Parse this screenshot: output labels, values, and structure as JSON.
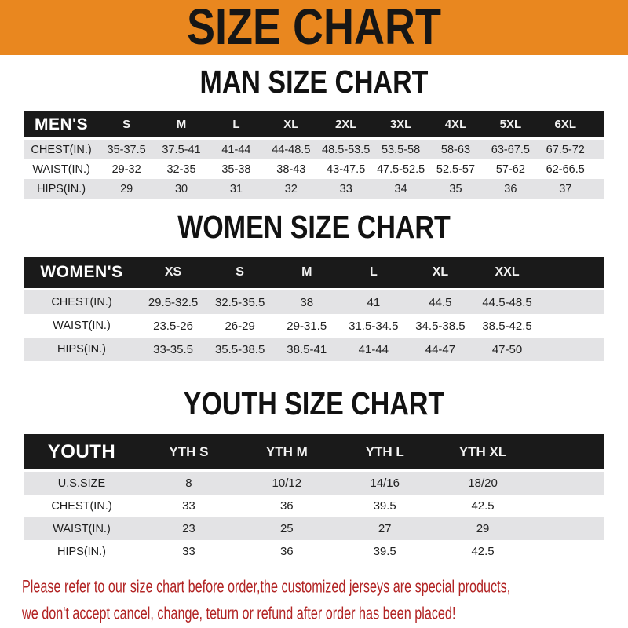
{
  "page": {
    "header_title": "SIZE CHART",
    "footer_line1": "Please refer to our size chart before order,the customized jerseys are special products,",
    "footer_line2": "we don't accept cancel, change, teturn or refund after order has been placed!"
  },
  "colors": {
    "banner_orange": "#E9871F",
    "band_black": "#1A1A1A",
    "stripe_gray": "#E3E3E5",
    "footer_red": "#B22424"
  },
  "tables": [
    {
      "title": "MAN SIZE CHART",
      "corner_label": "MEN'S",
      "columns": [
        "S",
        "M",
        "L",
        "XL",
        "2XL",
        "3XL",
        "4XL",
        "5XL",
        "6XL"
      ],
      "rows": [
        {
          "label": "CHEST(IN.)",
          "values": [
            "35-37.5",
            "37.5-41",
            "41-44",
            "44-48.5",
            "48.5-53.5",
            "53.5-58",
            "58-63",
            "63-67.5",
            "67.5-72"
          ]
        },
        {
          "label": "WAIST(IN.)",
          "values": [
            "29-32",
            "32-35",
            "35-38",
            "38-43",
            "43-47.5",
            "47.5-52.5",
            "52.5-57",
            "57-62",
            "62-66.5"
          ]
        },
        {
          "label": "HIPS(IN.)",
          "values": [
            "29",
            "30",
            "31",
            "32",
            "33",
            "34",
            "35",
            "36",
            "37"
          ]
        }
      ]
    },
    {
      "title": "WOMEN SIZE CHART",
      "corner_label": "WOMEN'S",
      "columns": [
        "XS",
        "S",
        "M",
        "L",
        "XL",
        "XXL"
      ],
      "rows": [
        {
          "label": "CHEST(IN.)",
          "values": [
            "29.5-32.5",
            "32.5-35.5",
            "38",
            "41",
            "44.5",
            "44.5-48.5"
          ]
        },
        {
          "label": "WAIST(IN.)",
          "values": [
            "23.5-26",
            "26-29",
            "29-31.5",
            "31.5-34.5",
            "34.5-38.5",
            "38.5-42.5"
          ]
        },
        {
          "label": "HIPS(IN.)",
          "values": [
            "33-35.5",
            "35.5-38.5",
            "38.5-41",
            "41-44",
            "44-47",
            "47-50"
          ]
        }
      ]
    },
    {
      "title": "YOUTH SIZE CHART",
      "corner_label": "YOUTH",
      "columns": [
        "YTH S",
        "YTH M",
        "YTH L",
        "YTH XL"
      ],
      "rows": [
        {
          "label": "U.S.SIZE",
          "values": [
            "8",
            "10/12",
            "14/16",
            "18/20"
          ]
        },
        {
          "label": "CHEST(IN.)",
          "values": [
            "33",
            "36",
            "39.5",
            "42.5"
          ]
        },
        {
          "label": "WAIST(IN.)",
          "values": [
            "23",
            "25",
            "27",
            "29"
          ]
        },
        {
          "label": "HIPS(IN.)",
          "values": [
            "33",
            "36",
            "39.5",
            "42.5"
          ]
        }
      ]
    }
  ]
}
